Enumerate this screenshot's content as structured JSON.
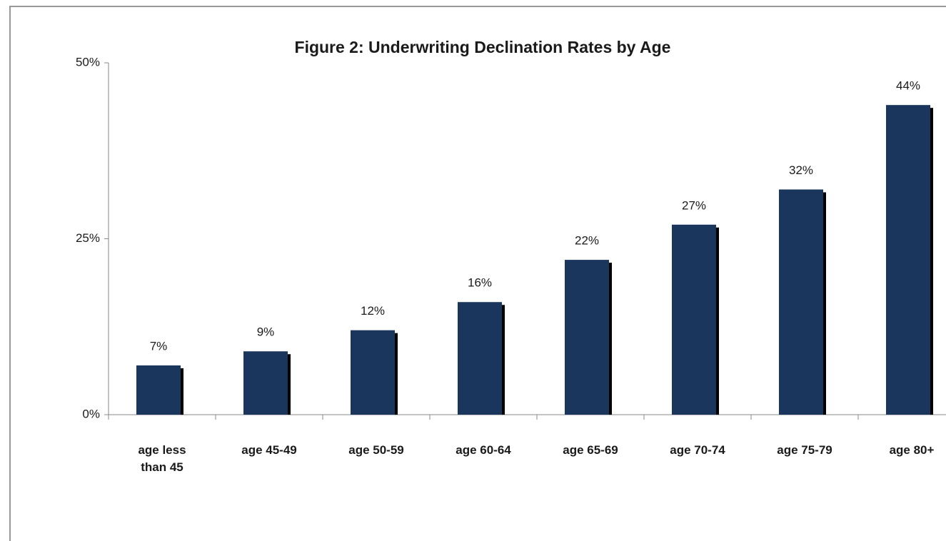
{
  "chart_data": {
    "type": "bar",
    "title": "Figure 2: Underwriting Declination Rates by Age",
    "categories": [
      "age less than 45",
      "age 45-49",
      "age 50-59",
      "age 60-64",
      "age 65-69",
      "age 70-74",
      "age 75-79",
      "age 80+"
    ],
    "values": [
      7,
      9,
      12,
      16,
      22,
      27,
      32,
      44
    ],
    "value_labels": [
      "7%",
      "9%",
      "12%",
      "16%",
      "22%",
      "27%",
      "32%",
      "44%"
    ],
    "color": "#1b365d",
    "ylim": [
      0,
      50
    ],
    "yticks": [
      {
        "value": 0,
        "label": "0%"
      },
      {
        "value": 25,
        "label": "25%"
      },
      {
        "value": 50,
        "label": "50%"
      }
    ],
    "grid": false
  }
}
